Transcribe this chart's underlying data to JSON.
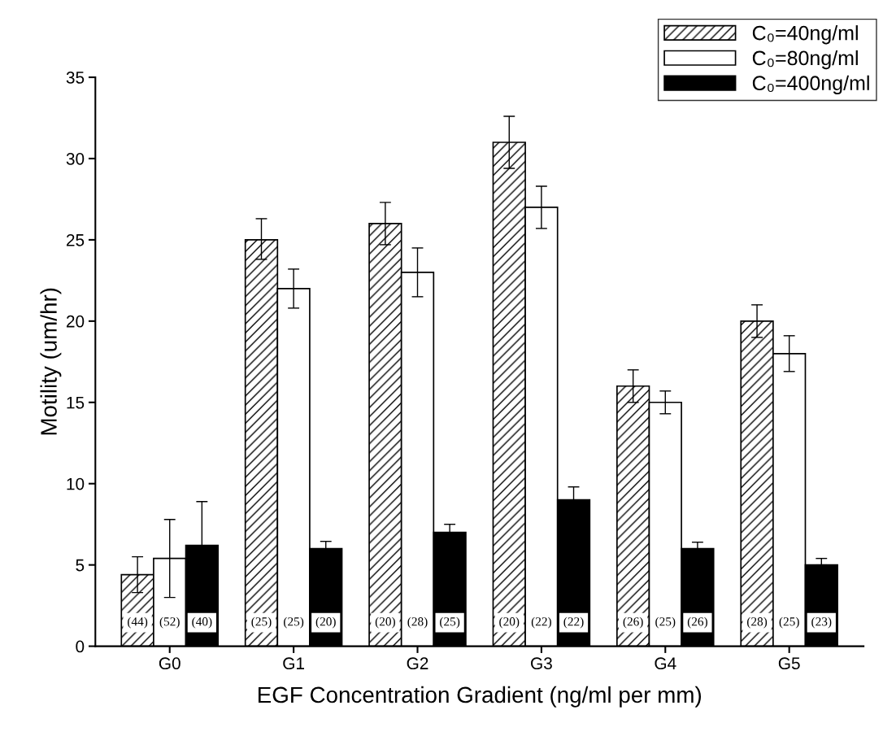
{
  "chart_data": {
    "type": "bar",
    "xlabel": "EGF Concentration Gradient (ng/ml per mm)",
    "ylabel": "Motility (um/hr)",
    "categories": [
      "G0",
      "G1",
      "G2",
      "G3",
      "G4",
      "G5"
    ],
    "series": [
      {
        "name": "C₀=40ng/ml",
        "color": "#000000",
        "values": [
          4.4,
          25,
          26,
          31,
          16,
          20
        ],
        "errors": [
          [
            3.3,
            5.5
          ],
          [
            23.8,
            26.3
          ],
          [
            24.7,
            27.3
          ],
          [
            29.4,
            32.6
          ],
          [
            15,
            17
          ],
          [
            19,
            21
          ]
        ]
      },
      {
        "name": "C₀=80ng/ml",
        "color": "#ffffff",
        "values": [
          5.4,
          22,
          23,
          27,
          15,
          18
        ],
        "errors": [
          [
            3.0,
            7.8
          ],
          [
            20.8,
            23.2
          ],
          [
            21.5,
            24.5
          ],
          [
            25.7,
            28.3
          ],
          [
            14.3,
            15.7
          ],
          [
            16.9,
            19.1
          ]
        ]
      },
      {
        "name": "C₀=400ng/ml",
        "color": "#000000",
        "values": [
          6.2,
          6,
          7,
          9,
          6,
          5
        ],
        "errors": [
          [
            6.2,
            8.9
          ],
          [
            6,
            6.45
          ],
          [
            7,
            7.5
          ],
          [
            9,
            9.8
          ],
          [
            6,
            6.4
          ],
          [
            5,
            5.4
          ]
        ]
      }
    ],
    "annotations": [
      "(44)",
      "(52)",
      "(40)",
      "(25)",
      "(25)",
      "(20)",
      "(20)",
      "(28)",
      "(25)",
      "(20)",
      "(22)",
      "(22)",
      "(26)",
      "(25)",
      "(26)",
      "(28)",
      "(25)",
      "(23)"
    ],
    "ylim": [
      0,
      35
    ],
    "yticks": [
      0,
      5,
      10,
      15,
      20,
      25,
      30,
      35
    ],
    "grid": false,
    "legend": "top right"
  }
}
